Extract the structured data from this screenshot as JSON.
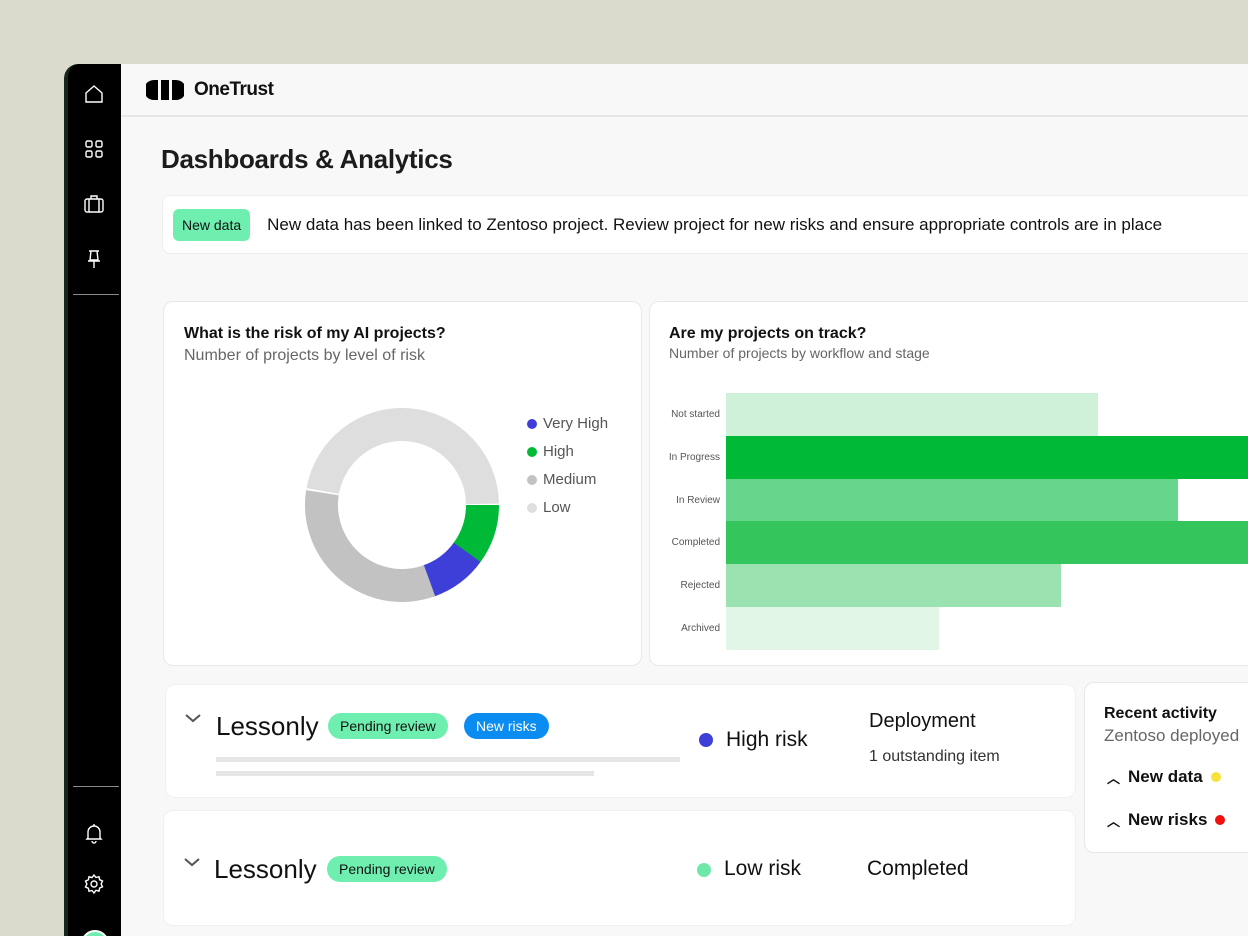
{
  "brand": "OneTrust",
  "page_title": "Dashboards & Analytics",
  "banner": {
    "tag": "New data",
    "message": "New data has been linked to Zentoso project. Review project for new risks and ensure appropriate controls are in place"
  },
  "sidebar": {
    "icons": [
      "home-icon",
      "grid-icon",
      "briefcase-icon",
      "pin-icon",
      "bell-icon",
      "gear-icon",
      "avatar"
    ]
  },
  "risk_card": {
    "title": "What is the risk of my AI projects?",
    "subtitle": "Number of projects by level of risk"
  },
  "track_card": {
    "title": "Are my projects on track?",
    "subtitle": "Number of projects by workflow and stage"
  },
  "chart_data": [
    {
      "type": "pie",
      "style": "donut",
      "categories": [
        "Very High",
        "High",
        "Medium",
        "Low"
      ],
      "values": [
        10,
        10,
        33,
        47
      ],
      "colors": [
        "#3d3fd8",
        "#00b936",
        "#c2c2c2",
        "#dedede"
      ],
      "legend": "right"
    },
    {
      "type": "bar",
      "orientation": "horizontal",
      "categories": [
        "Not started",
        "In Progress",
        "In Review",
        "Completed",
        "Rejected",
        "Archived"
      ],
      "values": [
        7,
        11,
        8.5,
        11,
        6.3,
        4
      ],
      "colors": [
        "#cff0d9",
        "#00b936",
        "#65d68b",
        "#35c55d",
        "#9ae3b0",
        "#e2f6e8"
      ],
      "grid": false
    }
  ],
  "projects": [
    {
      "name": "Lessonly",
      "badges": [
        "Pending review",
        "New risks"
      ],
      "risk": "High risk",
      "risk_color": "#3d3fd8",
      "stage": "Deployment",
      "detail": "1 outstanding item"
    },
    {
      "name": "Lessonly",
      "badges": [
        "Pending review"
      ],
      "risk": "Low risk",
      "risk_color": "#6ee8a8",
      "stage": "Completed"
    }
  ],
  "activity": {
    "title": "Recent activity",
    "subtitle": "Zentoso deployed",
    "items": [
      {
        "label": "New data",
        "color": "#f7e23a"
      },
      {
        "label": "New risks",
        "color": "#f20f0f"
      }
    ]
  }
}
